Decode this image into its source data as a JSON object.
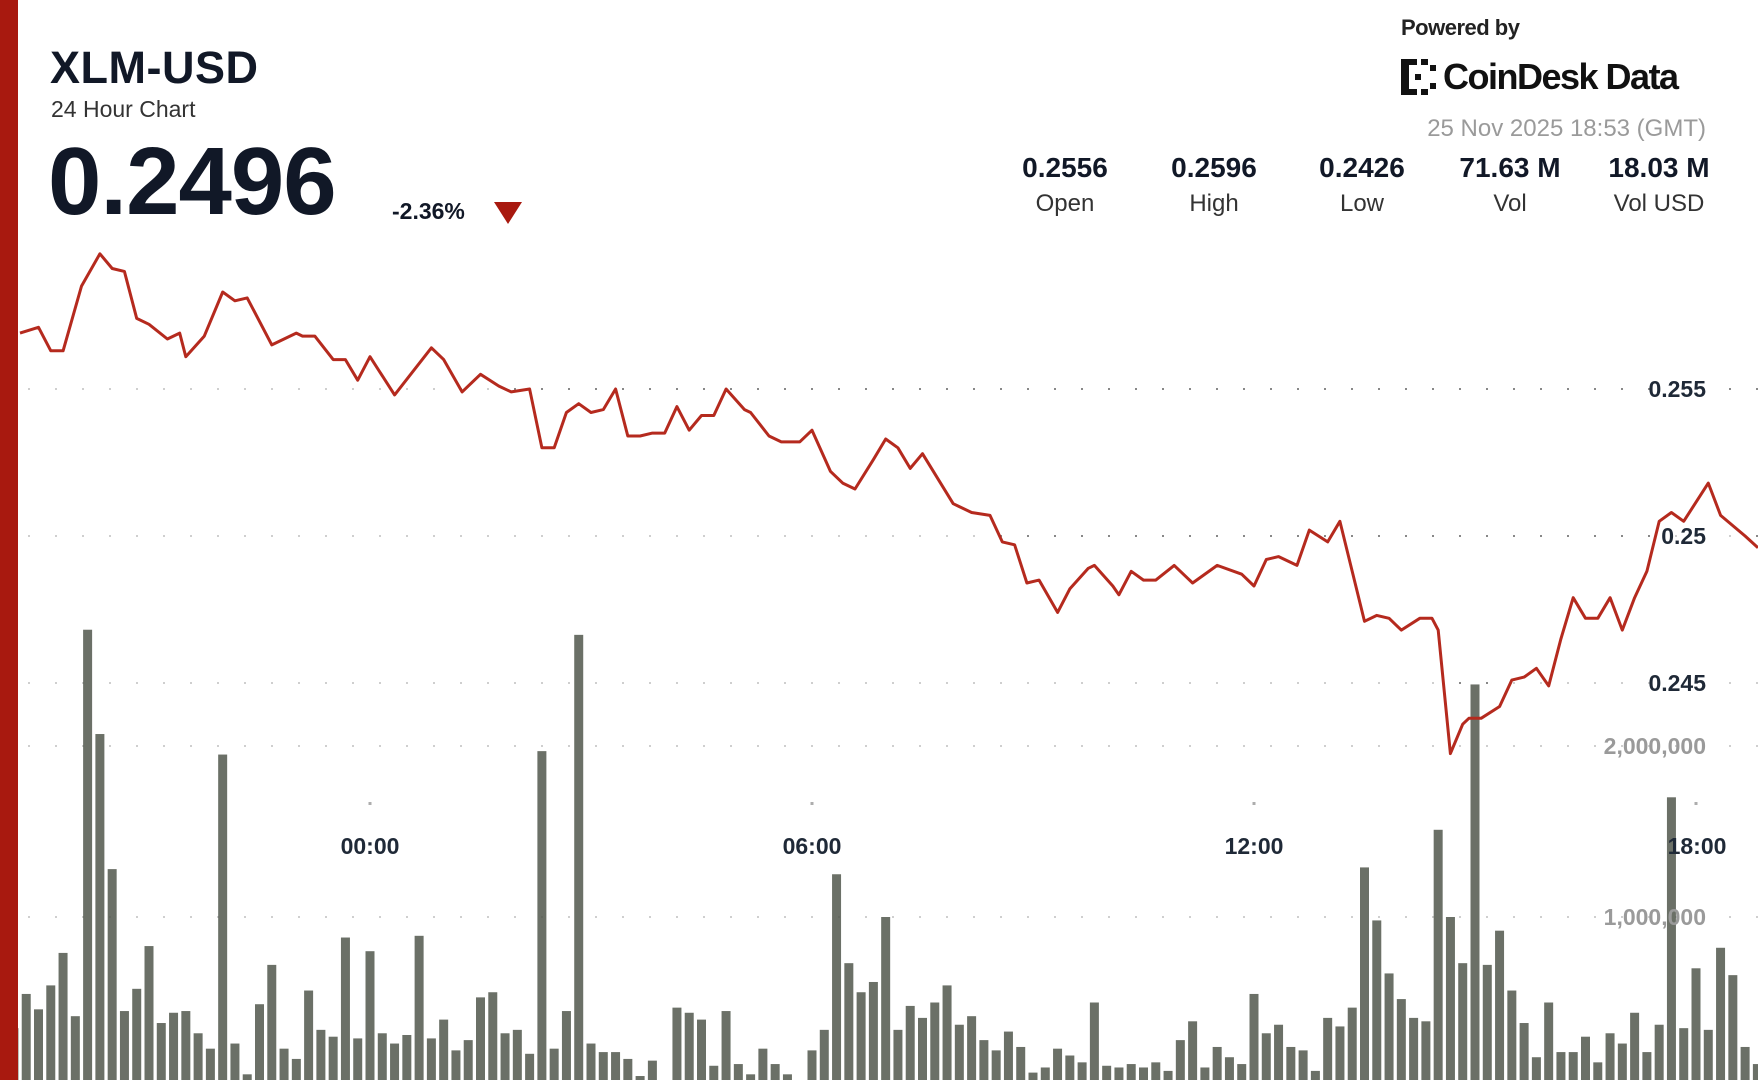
{
  "header": {
    "symbol": "XLM-USD",
    "subtitle": "24 Hour Chart",
    "price": "0.2496",
    "change": "-2.36%",
    "change_direction": "down",
    "powered_by": "Powered by",
    "brand": "CoinDesk Data",
    "timestamp": "25 Nov 2025 18:53 (GMT)"
  },
  "stats": [
    {
      "value": "0.2556",
      "label": "Open"
    },
    {
      "value": "0.2596",
      "label": "High"
    },
    {
      "value": "0.2426",
      "label": "Low"
    },
    {
      "value": "71.63 M",
      "label": "Vol"
    },
    {
      "value": "18.03 M",
      "label": "Vol USD"
    }
  ],
  "colors": {
    "accent": "#a8190f",
    "line": "#b52a1e",
    "fill_top": "#cf8078",
    "volume_bar": "#4b5046",
    "volume_label": "#9a9a9a"
  },
  "chart_data": {
    "type": "line",
    "title": "",
    "x_ticks": [
      "00:00",
      "06:00",
      "12:00",
      "18:00"
    ],
    "price_axis": {
      "ticks": [
        0.255,
        0.25,
        0.245
      ],
      "tick_labels": [
        "0.255",
        "0.25",
        "0.245"
      ],
      "grid": "dotted"
    },
    "volume_axis": {
      "ticks": [
        2000000,
        1000000
      ],
      "tick_labels": [
        "2,000,000",
        "1,000,000"
      ],
      "grid": "dotted"
    },
    "price_series": [
      [
        "19:15",
        0.2569
      ],
      [
        "19:30",
        0.2571
      ],
      [
        "19:40",
        0.2563
      ],
      [
        "19:50",
        0.2563
      ],
      [
        "20:05",
        0.2585
      ],
      [
        "20:20",
        0.2596
      ],
      [
        "20:30",
        0.2591
      ],
      [
        "20:40",
        0.259
      ],
      [
        "20:50",
        0.2574
      ],
      [
        "21:00",
        0.2572
      ],
      [
        "21:15",
        0.2567
      ],
      [
        "21:25",
        0.2569
      ],
      [
        "21:30",
        0.2561
      ],
      [
        "21:45",
        0.2568
      ],
      [
        "22:00",
        0.2583
      ],
      [
        "22:10",
        0.258
      ],
      [
        "22:20",
        0.2581
      ],
      [
        "22:40",
        0.2565
      ],
      [
        "23:00",
        0.2569
      ],
      [
        "23:05",
        0.2568
      ],
      [
        "23:15",
        0.2568
      ],
      [
        "23:30",
        0.256
      ],
      [
        "23:40",
        0.256
      ],
      [
        "23:50",
        0.2553
      ],
      [
        "00:00",
        0.2561
      ],
      [
        "00:20",
        0.2548
      ],
      [
        "00:50",
        0.2564
      ],
      [
        "01:00",
        0.256
      ],
      [
        "01:15",
        0.2549
      ],
      [
        "01:30",
        0.2555
      ],
      [
        "01:45",
        0.2551
      ],
      [
        "01:55",
        0.2549
      ],
      [
        "02:10",
        0.255
      ],
      [
        "02:20",
        0.253
      ],
      [
        "02:30",
        0.253
      ],
      [
        "02:40",
        0.2542
      ],
      [
        "02:50",
        0.2545
      ],
      [
        "03:00",
        0.2542
      ],
      [
        "03:10",
        0.2543
      ],
      [
        "03:20",
        0.255
      ],
      [
        "03:30",
        0.2534
      ],
      [
        "03:40",
        0.2534
      ],
      [
        "03:50",
        0.2535
      ],
      [
        "04:00",
        0.2535
      ],
      [
        "04:10",
        0.2544
      ],
      [
        "04:20",
        0.2536
      ],
      [
        "04:30",
        0.2541
      ],
      [
        "04:40",
        0.2541
      ],
      [
        "04:50",
        0.255
      ],
      [
        "05:05",
        0.2543
      ],
      [
        "05:10",
        0.2542
      ],
      [
        "05:25",
        0.2534
      ],
      [
        "05:35",
        0.2532
      ],
      [
        "05:50",
        0.2532
      ],
      [
        "06:00",
        0.2536
      ],
      [
        "06:15",
        0.2522
      ],
      [
        "06:25",
        0.2518
      ],
      [
        "06:35",
        0.2516
      ],
      [
        "06:50",
        0.2526
      ],
      [
        "07:00",
        0.2533
      ],
      [
        "07:10",
        0.253
      ],
      [
        "07:20",
        0.2523
      ],
      [
        "07:30",
        0.2528
      ],
      [
        "07:55",
        0.2511
      ],
      [
        "08:00",
        0.251
      ],
      [
        "08:10",
        0.2508
      ],
      [
        "08:25",
        0.2507
      ],
      [
        "08:35",
        0.2498
      ],
      [
        "08:45",
        0.2497
      ],
      [
        "08:55",
        0.2484
      ],
      [
        "09:05",
        0.2485
      ],
      [
        "09:20",
        0.2474
      ],
      [
        "09:30",
        0.2482
      ],
      [
        "09:45",
        0.2489
      ],
      [
        "09:50",
        0.249
      ],
      [
        "10:05",
        0.2483
      ],
      [
        "10:10",
        0.248
      ],
      [
        "10:20",
        0.2488
      ],
      [
        "10:30",
        0.2485
      ],
      [
        "10:40",
        0.2485
      ],
      [
        "10:55",
        0.249
      ],
      [
        "11:05",
        0.2486
      ],
      [
        "11:10",
        0.2484
      ],
      [
        "11:30",
        0.249
      ],
      [
        "11:50",
        0.2487
      ],
      [
        "12:00",
        0.2483
      ],
      [
        "12:10",
        0.2492
      ],
      [
        "12:20",
        0.2493
      ],
      [
        "12:35",
        0.249
      ],
      [
        "12:45",
        0.2502
      ],
      [
        "13:00",
        0.2498
      ],
      [
        "13:10",
        0.2505
      ],
      [
        "13:20",
        0.2488
      ],
      [
        "13:30",
        0.2471
      ],
      [
        "13:40",
        0.2473
      ],
      [
        "13:50",
        0.2472
      ],
      [
        "14:00",
        0.2468
      ],
      [
        "14:15",
        0.2472
      ],
      [
        "14:25",
        0.2472
      ],
      [
        "14:30",
        0.2468
      ],
      [
        "14:40",
        0.2426
      ],
      [
        "14:50",
        0.2436
      ],
      [
        "14:55",
        0.2438
      ],
      [
        "15:05",
        0.2438
      ],
      [
        "15:20",
        0.2442
      ],
      [
        "15:30",
        0.2451
      ],
      [
        "15:40",
        0.2452
      ],
      [
        "15:50",
        0.2455
      ],
      [
        "16:00",
        0.2449
      ],
      [
        "16:10",
        0.2465
      ],
      [
        "16:20",
        0.2479
      ],
      [
        "16:30",
        0.2472
      ],
      [
        "16:40",
        0.2472
      ],
      [
        "16:50",
        0.2479
      ],
      [
        "17:00",
        0.2468
      ],
      [
        "17:10",
        0.2479
      ],
      [
        "17:20",
        0.2488
      ],
      [
        "17:30",
        0.2505
      ],
      [
        "17:40",
        0.2508
      ],
      [
        "17:50",
        0.2505
      ],
      [
        "18:10",
        0.2518
      ],
      [
        "18:20",
        0.2507
      ],
      [
        "18:40",
        0.25
      ],
      [
        "18:50",
        0.2496
      ]
    ],
    "volume_series": {
      "start": "19:10",
      "interval_minutes": 10,
      "values": [
        350000,
        550000,
        460000,
        600000,
        790000,
        420000,
        2680000,
        2070000,
        1280000,
        450000,
        580000,
        830000,
        380000,
        440000,
        450000,
        320000,
        230000,
        1950000,
        260000,
        80000,
        490000,
        720000,
        230000,
        170000,
        570000,
        340000,
        300000,
        880000,
        290000,
        800000,
        320000,
        260000,
        310000,
        890000,
        290000,
        400000,
        220000,
        280000,
        530000,
        560000,
        320000,
        340000,
        200000,
        1970000,
        230000,
        450000,
        2650000,
        260000,
        210000,
        210000,
        170000,
        70000,
        160000,
        0,
        470000,
        440000,
        400000,
        130000,
        450000,
        140000,
        80000,
        230000,
        140000,
        80000,
        40000,
        220000,
        340000,
        1250000,
        730000,
        560000,
        620000,
        1000000,
        340000,
        480000,
        410000,
        500000,
        600000,
        370000,
        420000,
        280000,
        220000,
        330000,
        240000,
        90000,
        120000,
        230000,
        190000,
        150000,
        500000,
        130000,
        120000,
        140000,
        120000,
        150000,
        100000,
        280000,
        390000,
        120000,
        240000,
        180000,
        140000,
        550000,
        320000,
        370000,
        240000,
        220000,
        100000,
        410000,
        360000,
        470000,
        1290000,
        980000,
        670000,
        520000,
        410000,
        390000,
        1510000,
        1000000,
        730000,
        2360000,
        720000,
        920000,
        570000,
        380000,
        180000,
        500000,
        210000,
        210000,
        300000,
        150000,
        320000,
        260000,
        440000,
        210000,
        370000,
        1700000,
        350000,
        700000,
        340000,
        820000,
        660000,
        240000,
        140000
      ]
    }
  }
}
